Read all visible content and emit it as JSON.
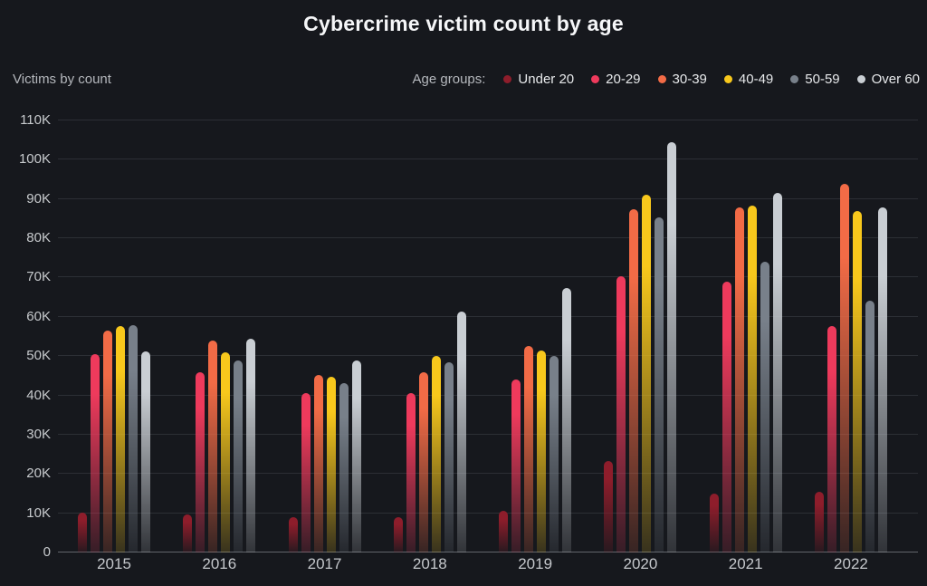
{
  "title": "Cybercrime victim count by age",
  "y_axis_title": "Victims by count",
  "legend": {
    "label": "Age groups:"
  },
  "colors": {
    "background": "#16181d",
    "gridline": "#2c2f35",
    "baseline": "#62656b"
  },
  "chart_data": {
    "type": "bar",
    "title": "Cybercrime victim count by age",
    "xlabel": "",
    "ylabel": "Victims by count",
    "ylim": [
      0,
      110000
    ],
    "ytick_step": 10000,
    "ytick_labels": [
      "0",
      "10K",
      "20K",
      "30K",
      "40K",
      "50K",
      "60K",
      "70K",
      "80K",
      "90K",
      "100K",
      "110K"
    ],
    "grid": true,
    "legend_position": "top-right",
    "categories": [
      "2015",
      "2016",
      "2017",
      "2018",
      "2019",
      "2020",
      "2021",
      "2022"
    ],
    "series": [
      {
        "name": "Under 20",
        "color": "#8e1d2b",
        "values": [
          10100,
          9800,
          9000,
          9100,
          10500,
          23200,
          14900,
          15500
        ]
      },
      {
        "name": "20-29",
        "color": "#ee3a5c",
        "values": [
          50600,
          46000,
          40700,
          40500,
          44100,
          70400,
          69000,
          57700
        ]
      },
      {
        "name": "30-39",
        "color": "#f26b46",
        "values": [
          56400,
          54000,
          45200,
          45800,
          52500,
          87500,
          87900,
          93800
        ]
      },
      {
        "name": "40-49",
        "color": "#f8c81c",
        "values": [
          57600,
          51000,
          44800,
          50000,
          51400,
          91100,
          88400,
          87000
        ]
      },
      {
        "name": "50-59",
        "color": "#78808a",
        "values": [
          58000,
          49000,
          43200,
          48400,
          50100,
          85300,
          74000,
          64000
        ]
      },
      {
        "name": "Over 60",
        "color": "#c9ced3",
        "values": [
          51100,
          54500,
          49000,
          61400,
          67400,
          104500,
          91500,
          87900
        ]
      }
    ]
  }
}
